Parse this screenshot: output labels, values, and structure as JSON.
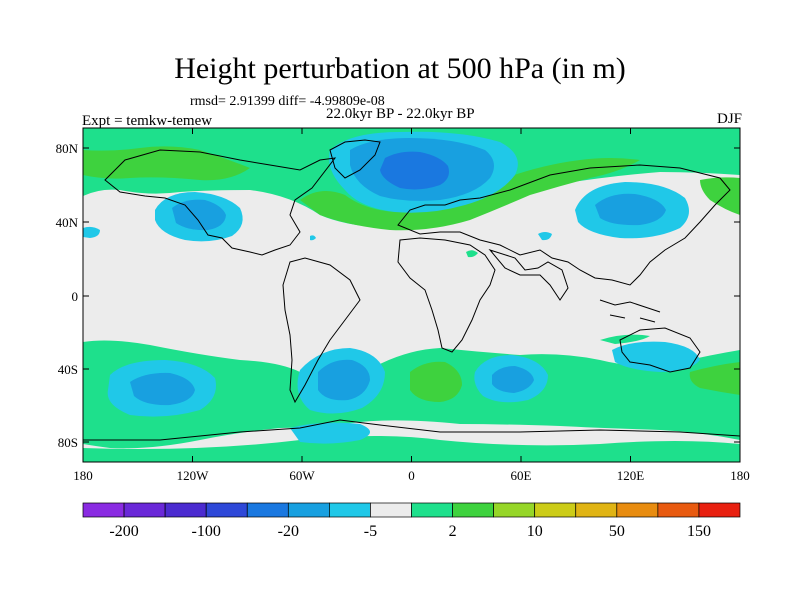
{
  "title": "Height perturbation at 500 hPa (in m)",
  "stats": "rmsd= 2.91399 diff= -4.99809e-08",
  "expt": "Expt = temkw-temew",
  "period": "22.0kyr BP - 22.0kyr BP",
  "season": "DJF",
  "axes": {
    "lat_ticks": [
      "80N",
      "40N",
      "0",
      "40S",
      "80S"
    ],
    "lon_ticks": [
      "180",
      "120W",
      "60W",
      "0",
      "60E",
      "120E",
      "180"
    ]
  },
  "colorbar": {
    "colors": [
      "#8a2be2",
      "#6a28d8",
      "#4b2bd0",
      "#2e48d8",
      "#1a78e0",
      "#18a0e0",
      "#20c8e8",
      "#ececec",
      "#1ee08c",
      "#3ed23e",
      "#96d628",
      "#cccc18",
      "#e0b414",
      "#e88c10",
      "#e85a10",
      "#e82010"
    ],
    "labels": [
      "-200",
      "-100",
      "-20",
      "-5",
      "2",
      "10",
      "50",
      "150"
    ]
  },
  "field_colors": {
    "neg_light": "#20c8e8",
    "neg_mid": "#18a0e0",
    "neg_strong": "#1a78e0",
    "pos_light": "#1ee08c",
    "pos_mid": "#3ed23e",
    "background": "#ececec"
  }
}
